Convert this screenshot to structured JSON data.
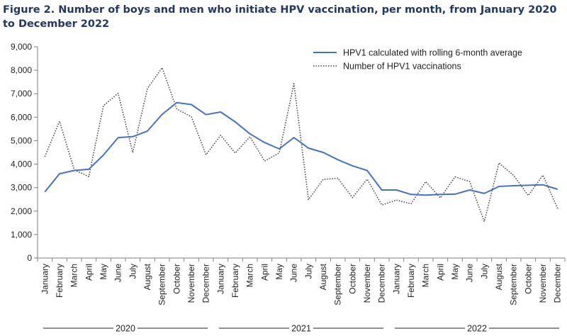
{
  "title": "Figure 2. Number of boys and men who initiate HPV vaccination, per month, from January 2020 to December 2022",
  "chart_data": {
    "type": "line",
    "title": "Figure 2. Number of boys and men who initiate HPV vaccination, per month, from January 2020 to December 2022",
    "xlabel": "",
    "ylabel": "",
    "ylim": [
      0,
      9000
    ],
    "yticks": [
      0,
      1000,
      2000,
      3000,
      4000,
      5000,
      6000,
      7000,
      8000,
      9000
    ],
    "ytick_labels": [
      "0",
      "1,000",
      "2,000",
      "3,000",
      "4,000",
      "5,000",
      "6,000",
      "7,000",
      "8,000",
      "9,000"
    ],
    "grid": false,
    "legend_position": "top-right",
    "categories": [
      "January",
      "February",
      "March",
      "April",
      "May",
      "June",
      "July",
      "August",
      "September",
      "October",
      "November",
      "December",
      "January",
      "February",
      "March",
      "April",
      "May",
      "June",
      "July",
      "August",
      "September",
      "October",
      "November",
      "December",
      "January",
      "February",
      "March",
      "April",
      "May",
      "June",
      "July",
      "August",
      "September",
      "October",
      "November",
      "December"
    ],
    "year_groups": [
      {
        "label": "2020",
        "start": 0,
        "end": 11
      },
      {
        "label": "2021",
        "start": 12,
        "end": 23
      },
      {
        "label": "2022",
        "start": 24,
        "end": 35
      }
    ],
    "series": [
      {
        "name": "HPV1 calculated with rolling 6-month average",
        "color": "#4472c4",
        "style": "solid",
        "values": [
          2820,
          3590,
          3730,
          3780,
          4390,
          5130,
          5170,
          5410,
          6120,
          6620,
          6540,
          6110,
          6220,
          5800,
          5290,
          4920,
          4650,
          5130,
          4680,
          4500,
          4190,
          3930,
          3730,
          2900,
          2900,
          2710,
          2680,
          2710,
          2720,
          2900,
          2750,
          3050,
          3080,
          3100,
          3120,
          2930
        ]
      },
      {
        "name": "Number of HPV1 vaccinations",
        "color": "#404040",
        "style": "dotted",
        "values": [
          4320,
          5830,
          3760,
          3470,
          6490,
          7020,
          4490,
          7220,
          8110,
          6350,
          6020,
          4400,
          5230,
          4470,
          5170,
          4130,
          4480,
          7430,
          2490,
          3350,
          3400,
          2570,
          3360,
          2260,
          2470,
          2310,
          3260,
          2560,
          3460,
          3260,
          1550,
          4050,
          3520,
          2660,
          3530,
          2110
        ]
      }
    ]
  }
}
